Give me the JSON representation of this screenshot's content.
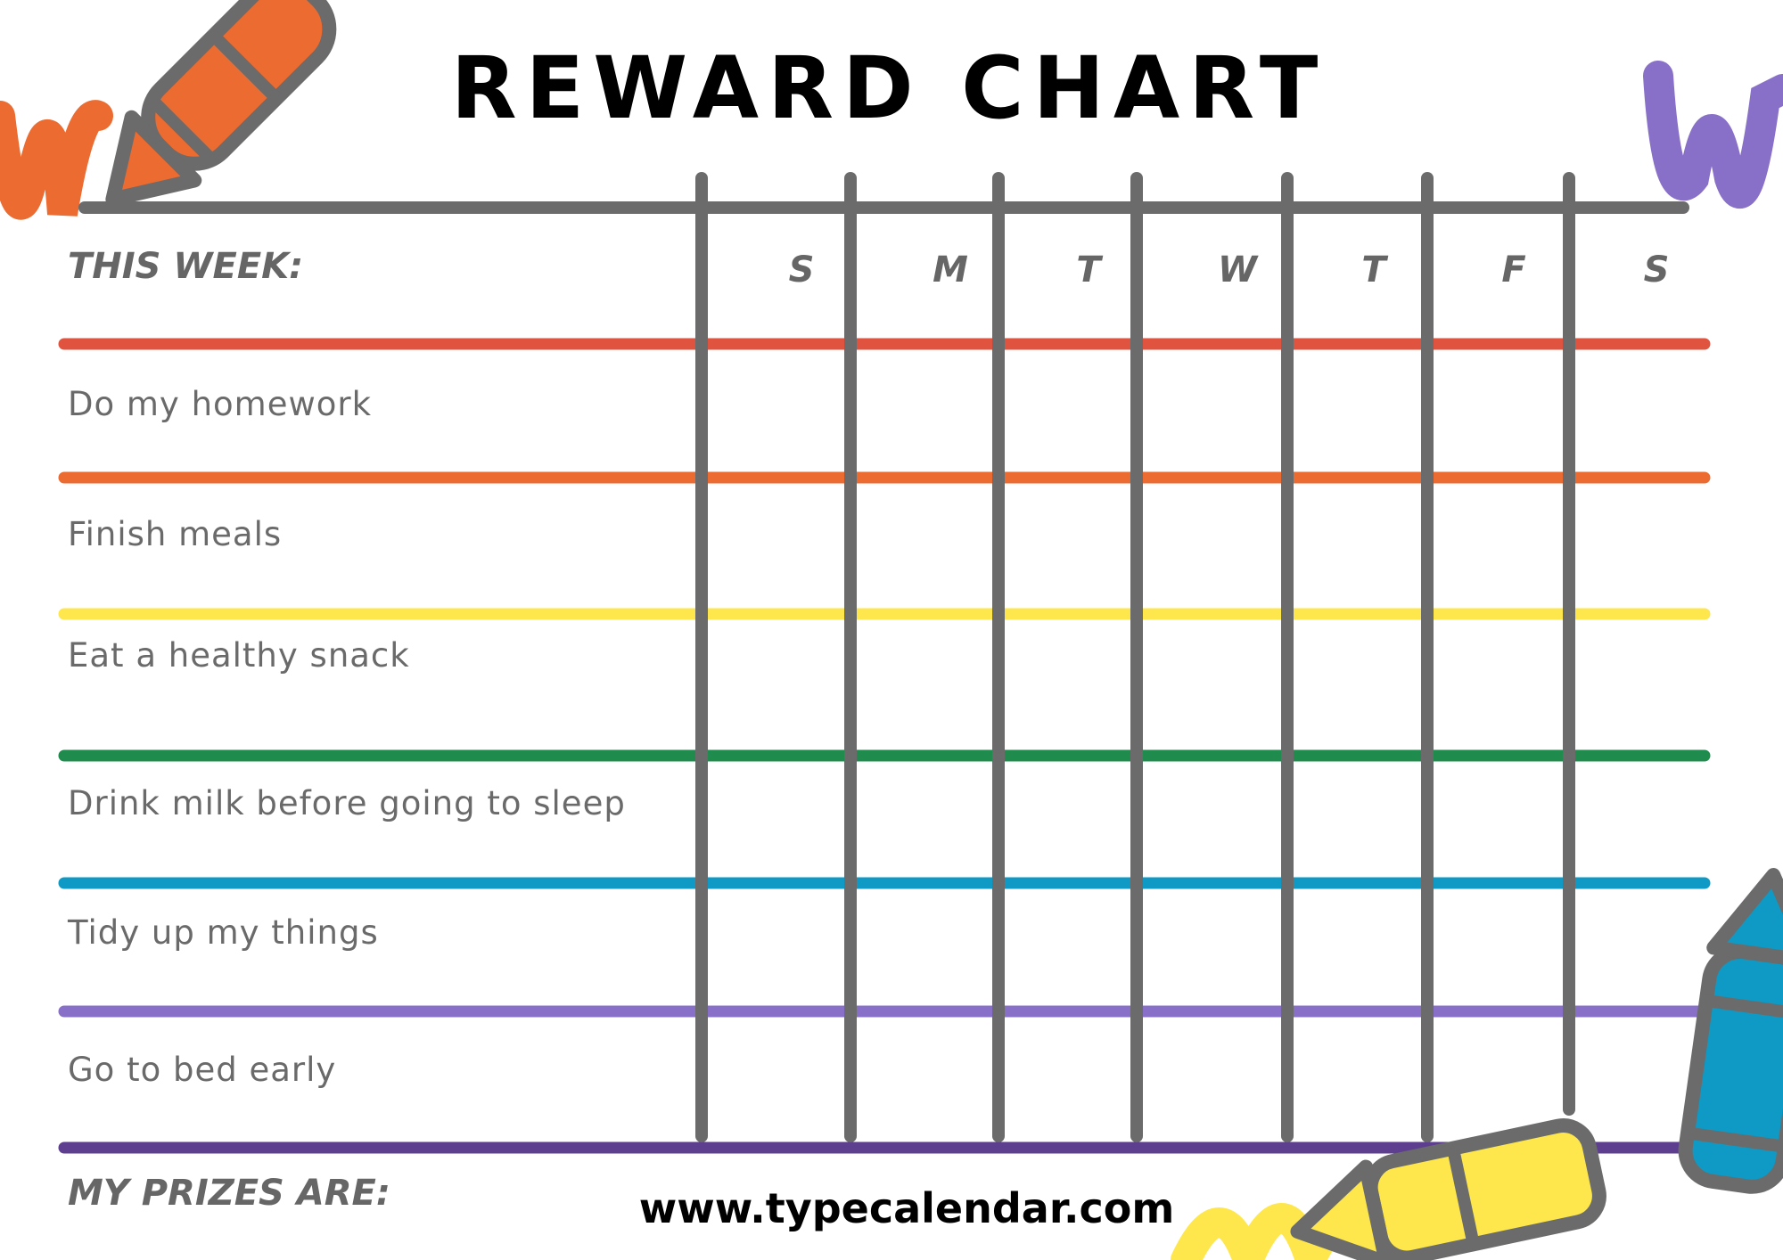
{
  "title": "REWARD CHART",
  "this_week_label": "THIS WEEK:",
  "days": [
    "S",
    "M",
    "T",
    "W",
    "T",
    "F",
    "S"
  ],
  "tasks": [
    "Do my homework",
    "Finish meals",
    "Eat a healthy snack",
    "Drink milk before going to sleep",
    "Tidy up my things",
    "Go to bed early"
  ],
  "prizes_label": "MY PRIZES ARE:",
  "website": "www.typecalendar.com",
  "colors": {
    "grid": "#6b6b6b",
    "row_lines": [
      "#e0533f",
      "#ec6b30",
      "#fde74c",
      "#1f8c4e",
      "#0e9ac4",
      "#8870c8",
      "#5e3f8f"
    ],
    "pencil_orange": "#ec6b30",
    "pencil_yellow": "#fde74c",
    "pencil_blue": "#0e9ac4",
    "scribble_purple": "#8870c8"
  },
  "icons": [
    "orange-pencil-icon",
    "yellow-pencil-icon",
    "blue-pencil-icon",
    "purple-scribble",
    "orange-scribble",
    "yellow-scribble"
  ]
}
